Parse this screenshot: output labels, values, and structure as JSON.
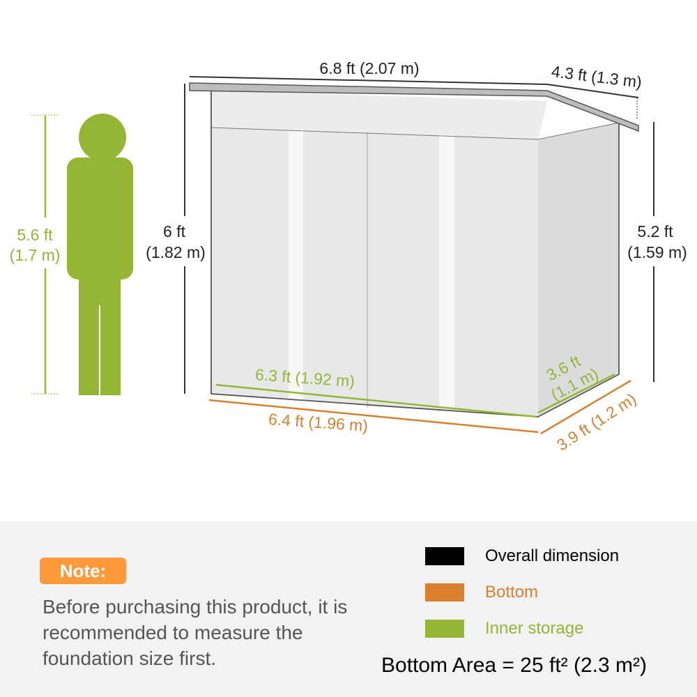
{
  "colors": {
    "overall": "#000000",
    "bottom": "#d97f2e",
    "inner": "#95b534",
    "note_badge": "#ff9a3a"
  },
  "person": {
    "height_ft": "5.6 ft",
    "height_m": "(1.7 m)"
  },
  "dimensions": {
    "width_top": "6.8 ft (2.07 m)",
    "depth_top": "4.3 ft (1.3 m)",
    "height_front_ft": "6 ft",
    "height_front_m": "(1.82 m)",
    "height_back_ft": "5.2 ft",
    "height_back_m": "(1.59 m)",
    "inner_width": "6.3 ft (1.92 m)",
    "inner_depth_ft": "3.6 ft",
    "inner_depth_m": "(1.1 m)",
    "bottom_width": "6.4 ft (1.96 m)",
    "bottom_depth": "3.9 ft (1.2 m)"
  },
  "note": {
    "badge": "Note:",
    "text": "Before purchasing this product, it is recommended to measure the foundation size first."
  },
  "legend": [
    {
      "label": "Overall dimension",
      "color": "#000000"
    },
    {
      "label": "Bottom",
      "color": "#d97f2e"
    },
    {
      "label": "Inner storage",
      "color": "#95b534"
    }
  ],
  "bottom_area": "Bottom Area = 25 ft² (2.3 m²)"
}
